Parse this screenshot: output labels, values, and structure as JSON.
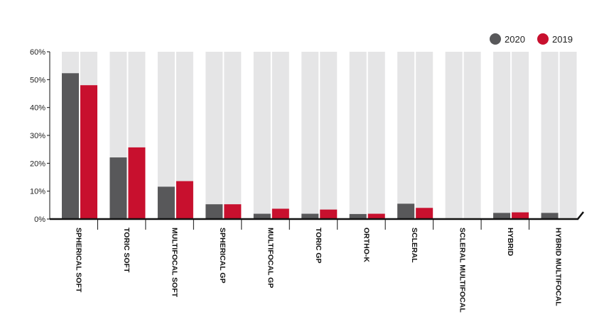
{
  "chart_data": {
    "type": "bar",
    "title": "",
    "xlabel": "",
    "ylabel": "",
    "ylim": [
      0,
      60
    ],
    "y_ticks": [
      "0%",
      "10%",
      "20%",
      "30%",
      "40%",
      "50%",
      "60%"
    ],
    "y_tick_values": [
      0,
      10,
      20,
      30,
      40,
      50,
      60
    ],
    "categories": [
      "SPHERICAL SOFT",
      "TORIC SOFT",
      "MULTIFOCAL SOFT",
      "SPHERICAL GP",
      "MULTIFOCAL GP",
      "TORIC GP",
      "ORTHO-K",
      "SCLERAL",
      "SCLERAL MULTIFOCAL",
      "HYBRID",
      "HYBRID MULTIFOCAL"
    ],
    "series": [
      {
        "name": "2020",
        "color": "#58585a",
        "values": [
          52.3,
          22.1,
          11.6,
          5.3,
          1.9,
          1.9,
          1.8,
          5.5,
          0,
          2.2,
          2.2
        ]
      },
      {
        "name": "2019",
        "color": "#c8102e",
        "values": [
          48.0,
          25.7,
          13.6,
          5.3,
          3.7,
          3.4,
          1.9,
          4.0,
          0,
          2.4,
          0
        ]
      }
    ],
    "background_bar_color": "#e5e5e6",
    "legend_position": "top-right",
    "grid": false
  }
}
